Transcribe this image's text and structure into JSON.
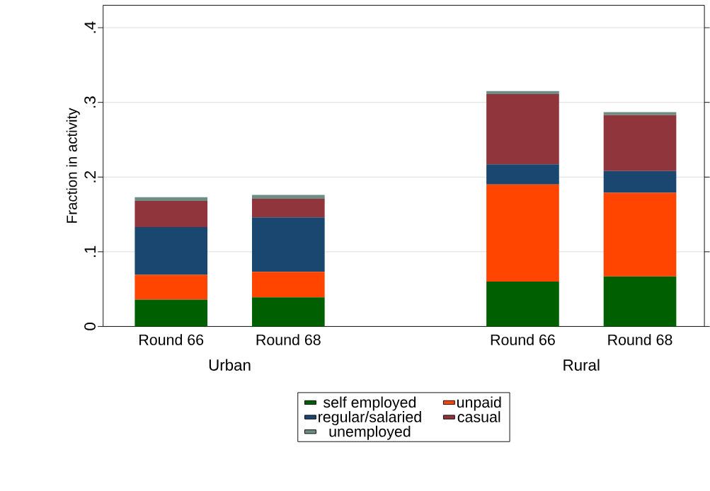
{
  "chart_data": {
    "type": "bar",
    "stacked": true,
    "ylabel": "Fraction in activity",
    "categories": [
      "Round 66",
      "Round 68",
      null,
      "Round 66",
      "Round 68"
    ],
    "series": [
      {
        "name": "self employed",
        "color": "#005f00",
        "values": [
          0.036,
          0.039,
          null,
          0.06,
          0.067
        ]
      },
      {
        "name": "unpaid",
        "color": "#ff4500",
        "values": [
          0.033,
          0.034,
          null,
          0.13,
          0.112
        ]
      },
      {
        "name": "regular/salaried",
        "color": "#1a476f",
        "values": [
          0.064,
          0.073,
          null,
          0.027,
          0.029
        ]
      },
      {
        "name": "casual",
        "color": "#90353b",
        "values": [
          0.035,
          0.025,
          null,
          0.094,
          0.075
        ]
      },
      {
        "name": "unemployed",
        "color": "#6e8e84",
        "values": [
          0.005,
          0.005,
          null,
          0.004,
          0.004
        ]
      }
    ],
    "annotations": [
      "Urban",
      "Rural"
    ],
    "ylim": [
      0,
      0.43
    ],
    "yticks": [
      0,
      {
        "value": 0.1,
        "label": ".1"
      },
      {
        "value": 0.2,
        "label": ".2"
      },
      {
        "value": 0.3,
        "label": ".3"
      },
      {
        "value": 0.4,
        "label": ".4"
      }
    ],
    "grid": "y",
    "legend": "bottom"
  }
}
